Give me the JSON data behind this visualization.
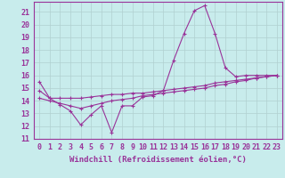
{
  "title": "",
  "xlabel": "Windchill (Refroidissement éolien,°C)",
  "ylabel": "",
  "background_color": "#c8ecec",
  "grid_color": "#b0d0d0",
  "line_color": "#993399",
  "xlim": [
    -0.5,
    23.5
  ],
  "ylim": [
    11,
    21.8
  ],
  "yticks": [
    11,
    12,
    13,
    14,
    15,
    16,
    17,
    18,
    19,
    20,
    21
  ],
  "xticks": [
    0,
    1,
    2,
    3,
    4,
    5,
    6,
    7,
    8,
    9,
    10,
    11,
    12,
    13,
    14,
    15,
    16,
    17,
    18,
    19,
    20,
    21,
    22,
    23
  ],
  "curve1_x": [
    0,
    1,
    2,
    3,
    4,
    5,
    6,
    7,
    8,
    9,
    10,
    11,
    12,
    13,
    14,
    15,
    16,
    17,
    18,
    19,
    20,
    21,
    22,
    23
  ],
  "curve1_y": [
    15.5,
    14.2,
    13.7,
    13.2,
    12.1,
    12.9,
    13.6,
    11.5,
    13.6,
    13.6,
    14.3,
    14.4,
    14.8,
    17.2,
    19.3,
    21.1,
    21.5,
    19.3,
    16.6,
    15.9,
    16.0,
    16.0,
    16.0,
    16.0
  ],
  "curve2_x": [
    0,
    1,
    2,
    3,
    4,
    5,
    6,
    7,
    8,
    9,
    10,
    11,
    12,
    13,
    14,
    15,
    16,
    17,
    18,
    19,
    20,
    21,
    22,
    23
  ],
  "curve2_y": [
    14.8,
    14.2,
    14.2,
    14.2,
    14.2,
    14.3,
    14.4,
    14.5,
    14.5,
    14.6,
    14.6,
    14.7,
    14.8,
    14.9,
    15.0,
    15.1,
    15.2,
    15.4,
    15.5,
    15.6,
    15.7,
    15.8,
    15.9,
    16.0
  ],
  "curve3_x": [
    0,
    1,
    2,
    3,
    4,
    5,
    6,
    7,
    8,
    9,
    10,
    11,
    12,
    13,
    14,
    15,
    16,
    17,
    18,
    19,
    20,
    21,
    22,
    23
  ],
  "curve3_y": [
    14.2,
    14.0,
    13.8,
    13.6,
    13.4,
    13.6,
    13.8,
    14.0,
    14.1,
    14.2,
    14.4,
    14.5,
    14.6,
    14.7,
    14.8,
    14.9,
    15.0,
    15.2,
    15.3,
    15.5,
    15.6,
    15.8,
    15.9,
    16.0
  ],
  "xlabel_fontsize": 6.5,
  "tick_fontsize": 6,
  "marker": "+",
  "markersize": 3,
  "linewidth": 0.8
}
